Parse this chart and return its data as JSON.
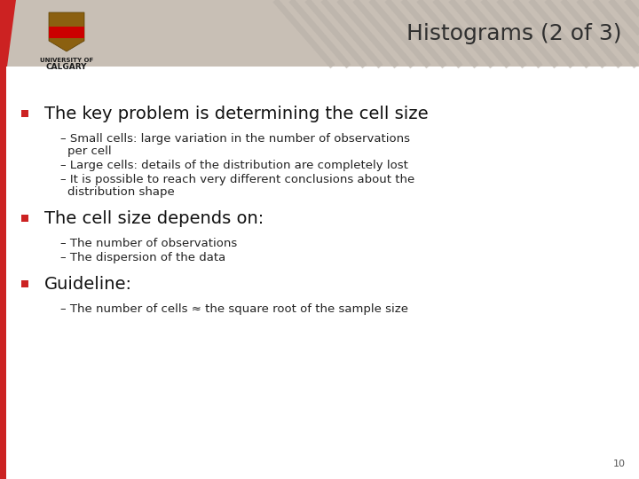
{
  "title": "Histograms (2 of 3)",
  "title_fontsize": 18,
  "title_color": "#2f2f2f",
  "background_color": "#ffffff",
  "header_bg_color": "#c8bfb5",
  "content_bg_color": "#ffffff",
  "red_accent": "#cc2222",
  "bullet1_main": "The key problem is determining the cell size",
  "bullet1_subs": [
    "Small cells: large variation in the number of observations\nper cell",
    "Large cells: details of the distribution are completely lost",
    "It is possible to reach very different conclusions about the\ndistribution shape"
  ],
  "bullet2_main": "The cell size depends on:",
  "bullet2_subs": [
    "The number of observations",
    "The dispersion of the data"
  ],
  "bullet3_main": "Guideline:",
  "bullet3_subs": [
    "The number of cells ≈ the square root of the sample size"
  ],
  "page_number": "10",
  "left_bar_color": "#cc2222",
  "stripe_color": "#b8b0a8",
  "header_text_color": "#2a2a2a",
  "logo_shield_color": "#8b6914",
  "logo_bg_color": "#c8bfb5"
}
